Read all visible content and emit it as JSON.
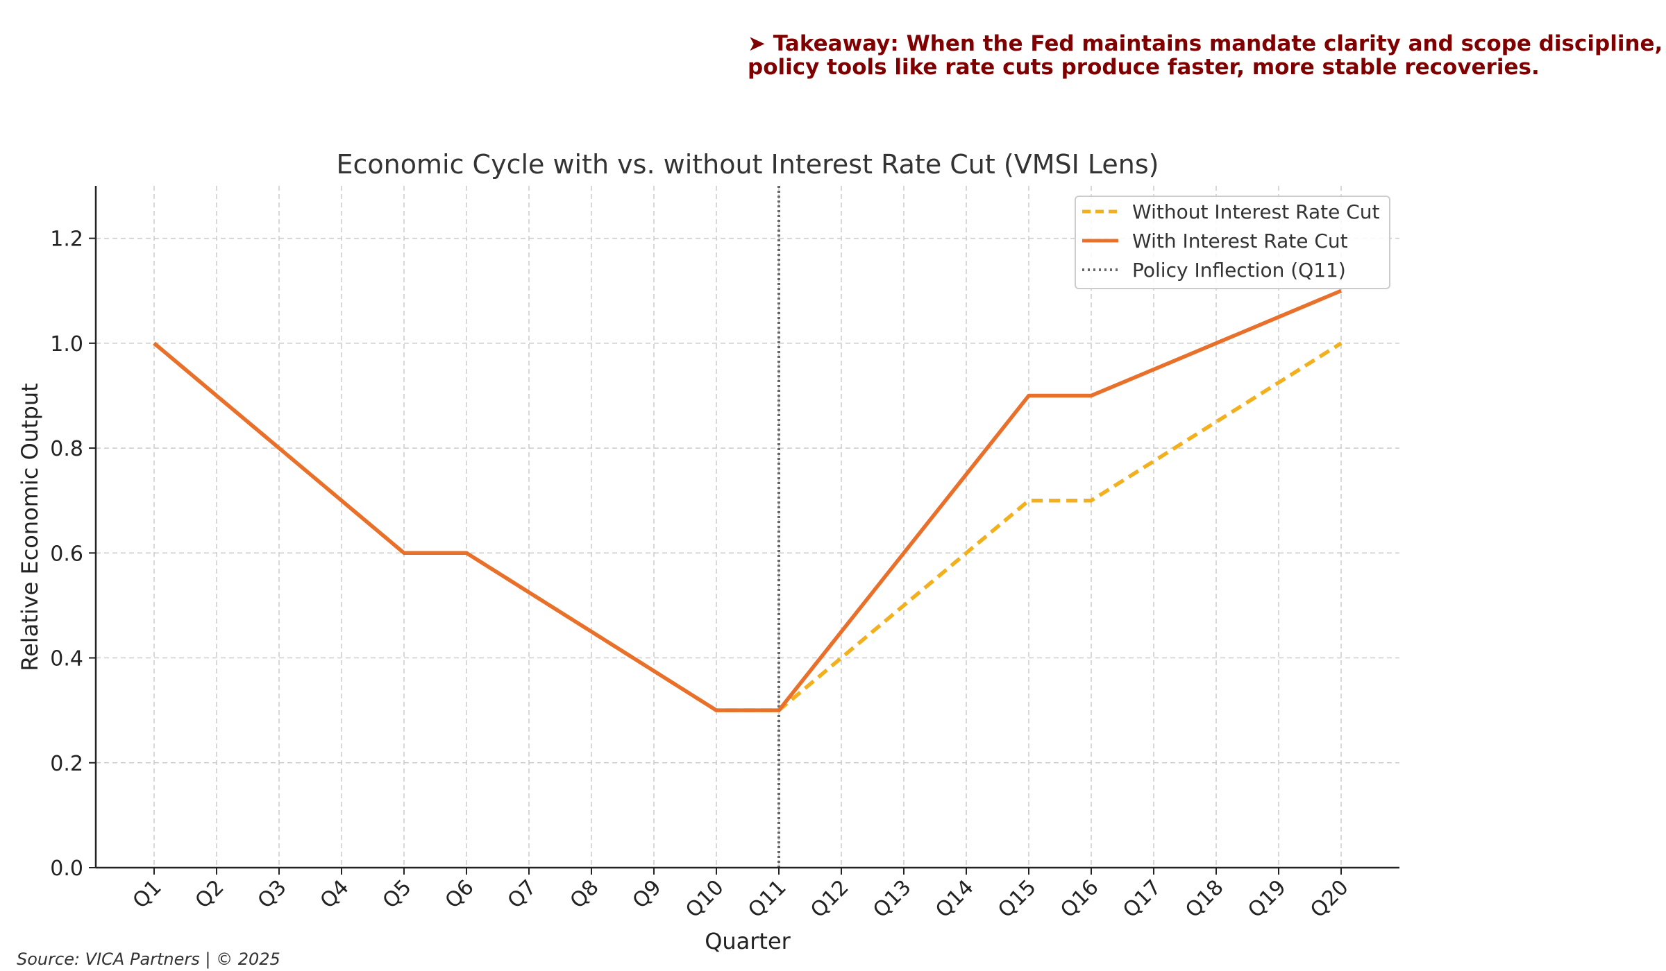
{
  "takeaway": {
    "line1": "➤ Takeaway: When the Fed maintains mandate clarity and scope discipline,",
    "line2": "policy tools like rate cuts produce faster, more stable recoveries."
  },
  "source": "Source: VICA Partners | © 2025",
  "colors": {
    "without_cut": "#f2b01e",
    "with_cut": "#e8702a",
    "inflection": "#666666",
    "takeaway": "#7f0000",
    "grid": "#cccccc"
  },
  "chart_data": {
    "type": "line",
    "title": "Economic Cycle with vs. without Interest Rate Cut (VMSI Lens)",
    "xlabel": "Quarter",
    "ylabel": "Relative Economic Output",
    "categories": [
      "Q1",
      "Q2",
      "Q3",
      "Q4",
      "Q5",
      "Q6",
      "Q7",
      "Q8",
      "Q9",
      "Q10",
      "Q11",
      "Q12",
      "Q13",
      "Q14",
      "Q15",
      "Q16",
      "Q17",
      "Q18",
      "Q19",
      "Q20"
    ],
    "ylim": [
      0,
      1.3
    ],
    "yticks": [
      "0.0",
      "0.2",
      "0.4",
      "0.6",
      "0.8",
      "1.0",
      "1.2"
    ],
    "grid": true,
    "legend_position": "top-right",
    "series": [
      {
        "name": "Without Interest Rate Cut",
        "style": "dashed",
        "values": [
          1.0,
          0.9,
          0.8,
          0.7,
          0.6,
          0.6,
          0.525,
          0.45,
          0.375,
          0.3,
          0.3,
          0.4,
          0.5,
          0.6,
          0.7,
          0.7,
          0.775,
          0.85,
          0.925,
          1.0
        ]
      },
      {
        "name": "With Interest Rate Cut",
        "style": "solid",
        "values": [
          1.0,
          0.9,
          0.8,
          0.7,
          0.6,
          0.6,
          0.525,
          0.45,
          0.375,
          0.3,
          0.3,
          0.45,
          0.6,
          0.75,
          0.9,
          0.9,
          0.95,
          1.0,
          1.05,
          1.1
        ]
      }
    ],
    "annotations": [
      {
        "name": "Policy Inflection (Q11)",
        "type": "vline",
        "x": "Q11",
        "style": "dotted"
      }
    ]
  }
}
